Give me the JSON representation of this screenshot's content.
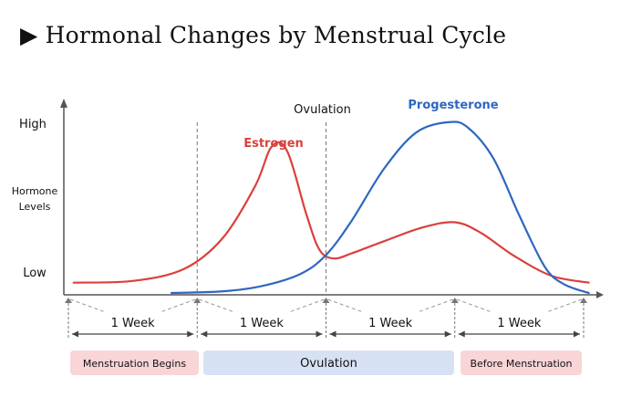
{
  "title_marker": "▶",
  "title_text": "Hormonal Changes by Menstrual Cycle",
  "chart_data": {
    "type": "line",
    "ylabel": "Hormone Levels",
    "y_ticks": [
      "High",
      "Low"
    ],
    "x_segments": [
      "1 Week",
      "1 Week",
      "1 Week",
      "1 Week"
    ],
    "x_divisions": 4,
    "annotation": "Ovulation",
    "phases": [
      {
        "label": "Menstruation Begins",
        "start": 0,
        "end": 1,
        "color": "#f9d5d8"
      },
      {
        "label": "Ovulation",
        "start": 1,
        "end": 3,
        "color": "#d7e1f4"
      },
      {
        "label": "Before Menstruation",
        "start": 3,
        "end": 4,
        "color": "#f9d5d8"
      }
    ],
    "series": [
      {
        "name": "Estrogen",
        "color": "#d9413c",
        "x": [
          0.04,
          0.5,
          0.9,
          1.2,
          1.45,
          1.58,
          1.7,
          1.85,
          1.95,
          2.06,
          2.2,
          2.45,
          2.75,
          3.0,
          3.2,
          3.45,
          3.75,
          4.04
        ],
        "y": [
          0.06,
          0.07,
          0.14,
          0.32,
          0.62,
          0.85,
          0.82,
          0.45,
          0.25,
          0.2,
          0.23,
          0.3,
          0.38,
          0.41,
          0.35,
          0.22,
          0.1,
          0.06
        ]
      },
      {
        "name": "Progesterone",
        "color": "#2f67bf",
        "x": [
          0.8,
          1.2,
          1.5,
          1.8,
          2.0,
          2.2,
          2.45,
          2.7,
          2.95,
          3.1,
          3.3,
          3.5,
          3.7,
          3.85,
          4.04
        ],
        "y": [
          0.0,
          0.01,
          0.04,
          0.11,
          0.22,
          0.42,
          0.72,
          0.93,
          0.99,
          0.96,
          0.78,
          0.45,
          0.15,
          0.05,
          0.0
        ]
      }
    ],
    "ylim": [
      0,
      1
    ],
    "xlim": [
      0,
      4
    ]
  }
}
